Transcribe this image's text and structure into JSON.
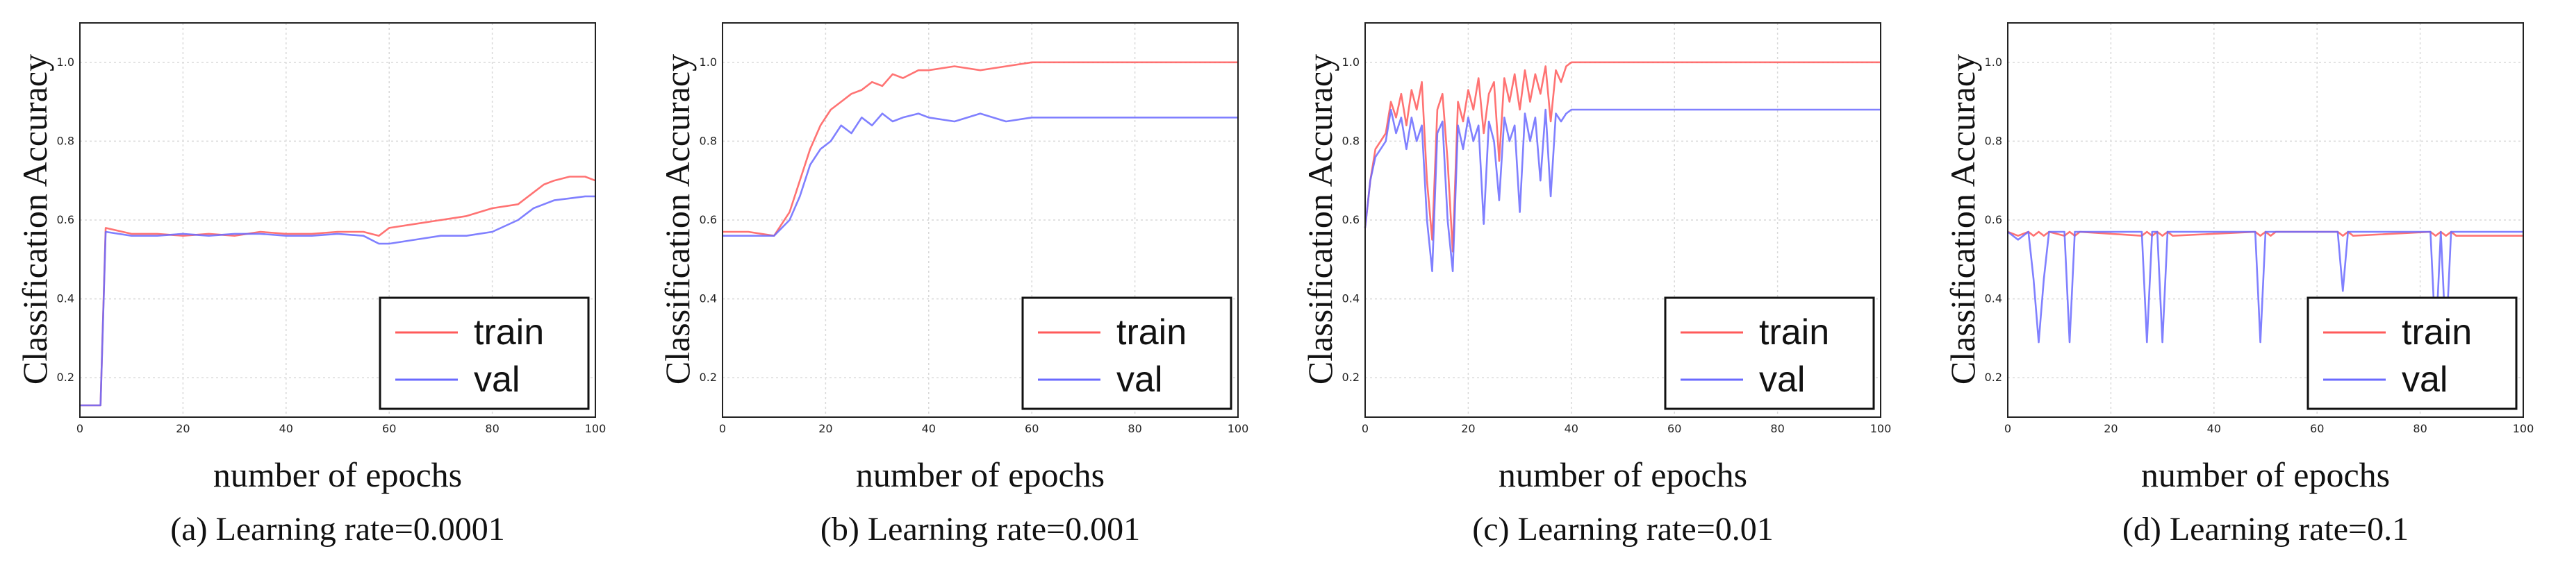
{
  "figure": {
    "ylabel": "Classification Accuracy",
    "xlabel": "number of epochs",
    "colors": {
      "train": "#ff5a5a",
      "val": "#6a6aff",
      "grid": "#d9d9d9",
      "axis": "#222222"
    }
  },
  "chart_data": [
    {
      "type": "line",
      "caption": "(a) Learning rate=0.0001",
      "xlabel": "number of epochs",
      "ylabel": "Classification Accuracy",
      "xlim": [
        0,
        100
      ],
      "ylim": [
        0.1,
        1.1
      ],
      "xticks": [
        "0",
        "20",
        "40",
        "60",
        "80",
        "100"
      ],
      "yticks": [
        "0.2",
        "0.4",
        "0.6",
        "0.8",
        "1.0"
      ],
      "legend": [
        "train",
        "val"
      ],
      "legend_position": "bottom-right",
      "x": [
        0,
        4,
        5,
        10,
        15,
        20,
        25,
        30,
        35,
        40,
        45,
        50,
        55,
        58,
        60,
        65,
        70,
        75,
        80,
        85,
        88,
        90,
        92,
        95,
        98,
        100
      ],
      "series": [
        {
          "name": "train",
          "values": [
            0.13,
            0.13,
            0.58,
            0.565,
            0.565,
            0.56,
            0.565,
            0.56,
            0.57,
            0.565,
            0.565,
            0.57,
            0.57,
            0.56,
            0.58,
            0.59,
            0.6,
            0.61,
            0.63,
            0.64,
            0.67,
            0.69,
            0.7,
            0.71,
            0.71,
            0.7
          ]
        },
        {
          "name": "val",
          "values": [
            0.13,
            0.13,
            0.57,
            0.56,
            0.56,
            0.565,
            0.56,
            0.565,
            0.565,
            0.56,
            0.56,
            0.565,
            0.56,
            0.54,
            0.54,
            0.55,
            0.56,
            0.56,
            0.57,
            0.6,
            0.63,
            0.64,
            0.65,
            0.655,
            0.66,
            0.66
          ]
        }
      ]
    },
    {
      "type": "line",
      "caption": "(b) Learning rate=0.001",
      "xlabel": "number of epochs",
      "ylabel": "Classification Accuracy",
      "xlim": [
        0,
        100
      ],
      "ylim": [
        0.1,
        1.1
      ],
      "xticks": [
        "0",
        "20",
        "40",
        "60",
        "80",
        "100"
      ],
      "yticks": [
        "0.2",
        "0.4",
        "0.6",
        "0.8",
        "1.0"
      ],
      "legend": [
        "train",
        "val"
      ],
      "legend_position": "bottom-right",
      "x": [
        0,
        5,
        10,
        13,
        15,
        17,
        19,
        21,
        23,
        25,
        27,
        29,
        31,
        33,
        35,
        38,
        40,
        45,
        50,
        55,
        60,
        70,
        80,
        90,
        100
      ],
      "series": [
        {
          "name": "train",
          "values": [
            0.57,
            0.57,
            0.56,
            0.62,
            0.7,
            0.78,
            0.84,
            0.88,
            0.9,
            0.92,
            0.93,
            0.95,
            0.94,
            0.97,
            0.96,
            0.98,
            0.98,
            0.99,
            0.98,
            0.99,
            1.0,
            1.0,
            1.0,
            1.0,
            1.0
          ]
        },
        {
          "name": "val",
          "values": [
            0.56,
            0.56,
            0.56,
            0.6,
            0.66,
            0.74,
            0.78,
            0.8,
            0.84,
            0.82,
            0.86,
            0.84,
            0.87,
            0.85,
            0.86,
            0.87,
            0.86,
            0.85,
            0.87,
            0.85,
            0.86,
            0.86,
            0.86,
            0.86,
            0.86
          ]
        }
      ]
    },
    {
      "type": "line",
      "caption": "(c) Learning rate=0.01",
      "xlabel": "number of epochs",
      "ylabel": "Classification Accuracy",
      "xlim": [
        0,
        100
      ],
      "ylim": [
        0.1,
        1.1
      ],
      "xticks": [
        "0",
        "20",
        "40",
        "60",
        "80",
        "100"
      ],
      "yticks": [
        "0.2",
        "0.4",
        "0.6",
        "0.8",
        "1.0"
      ],
      "legend": [
        "train",
        "val"
      ],
      "legend_position": "bottom-right",
      "x": [
        0,
        1,
        2,
        3,
        4,
        5,
        6,
        7,
        8,
        9,
        10,
        11,
        12,
        13,
        14,
        15,
        16,
        17,
        18,
        19,
        20,
        21,
        22,
        23,
        24,
        25,
        26,
        27,
        28,
        29,
        30,
        31,
        32,
        33,
        34,
        35,
        36,
        37,
        38,
        39,
        40,
        45,
        50,
        60,
        70,
        80,
        90,
        100
      ],
      "series": [
        {
          "name": "train",
          "values": [
            0.58,
            0.7,
            0.78,
            0.8,
            0.82,
            0.9,
            0.86,
            0.92,
            0.84,
            0.93,
            0.88,
            0.95,
            0.7,
            0.55,
            0.88,
            0.92,
            0.75,
            0.52,
            0.9,
            0.85,
            0.93,
            0.88,
            0.96,
            0.82,
            0.92,
            0.95,
            0.75,
            0.96,
            0.9,
            0.97,
            0.88,
            0.98,
            0.9,
            0.97,
            0.92,
            0.99,
            0.85,
            0.98,
            0.95,
            0.99,
            1.0,
            1.0,
            1.0,
            1.0,
            1.0,
            1.0,
            1.0,
            1.0
          ]
        },
        {
          "name": "val",
          "values": [
            0.58,
            0.7,
            0.76,
            0.78,
            0.8,
            0.88,
            0.82,
            0.86,
            0.78,
            0.86,
            0.8,
            0.84,
            0.6,
            0.47,
            0.82,
            0.85,
            0.6,
            0.47,
            0.84,
            0.78,
            0.86,
            0.8,
            0.84,
            0.59,
            0.85,
            0.8,
            0.65,
            0.86,
            0.8,
            0.84,
            0.62,
            0.87,
            0.8,
            0.86,
            0.7,
            0.88,
            0.66,
            0.87,
            0.85,
            0.87,
            0.88,
            0.88,
            0.88,
            0.88,
            0.88,
            0.88,
            0.88,
            0.88
          ]
        }
      ]
    },
    {
      "type": "line",
      "caption": "(d) Learning rate=0.1",
      "xlabel": "number of epochs",
      "ylabel": "Classification Accuracy",
      "xlim": [
        0,
        100
      ],
      "ylim": [
        0.1,
        1.1
      ],
      "xticks": [
        "0",
        "20",
        "40",
        "60",
        "80",
        "100"
      ],
      "yticks": [
        "0.2",
        "0.4",
        "0.6",
        "0.8",
        "1.0"
      ],
      "legend": [
        "train",
        "val"
      ],
      "legend_position": "bottom-right",
      "x": [
        0,
        2,
        4,
        5,
        6,
        7,
        8,
        11,
        12,
        13,
        14,
        26,
        27,
        28,
        29,
        30,
        31,
        32,
        48,
        49,
        50,
        51,
        52,
        64,
        65,
        66,
        67,
        82,
        83,
        84,
        85,
        86,
        87,
        100
      ],
      "series": [
        {
          "name": "train",
          "values": [
            0.57,
            0.56,
            0.57,
            0.56,
            0.57,
            0.56,
            0.57,
            0.56,
            0.57,
            0.56,
            0.57,
            0.56,
            0.57,
            0.56,
            0.57,
            0.56,
            0.57,
            0.56,
            0.57,
            0.56,
            0.57,
            0.56,
            0.57,
            0.57,
            0.56,
            0.57,
            0.56,
            0.57,
            0.56,
            0.57,
            0.56,
            0.57,
            0.56,
            0.56
          ]
        },
        {
          "name": "val",
          "values": [
            0.57,
            0.55,
            0.57,
            0.45,
            0.29,
            0.45,
            0.57,
            0.57,
            0.29,
            0.57,
            0.57,
            0.57,
            0.29,
            0.57,
            0.57,
            0.29,
            0.57,
            0.57,
            0.57,
            0.29,
            0.57,
            0.57,
            0.57,
            0.57,
            0.42,
            0.57,
            0.57,
            0.57,
            0.29,
            0.57,
            0.29,
            0.57,
            0.57,
            0.57
          ]
        }
      ]
    }
  ]
}
